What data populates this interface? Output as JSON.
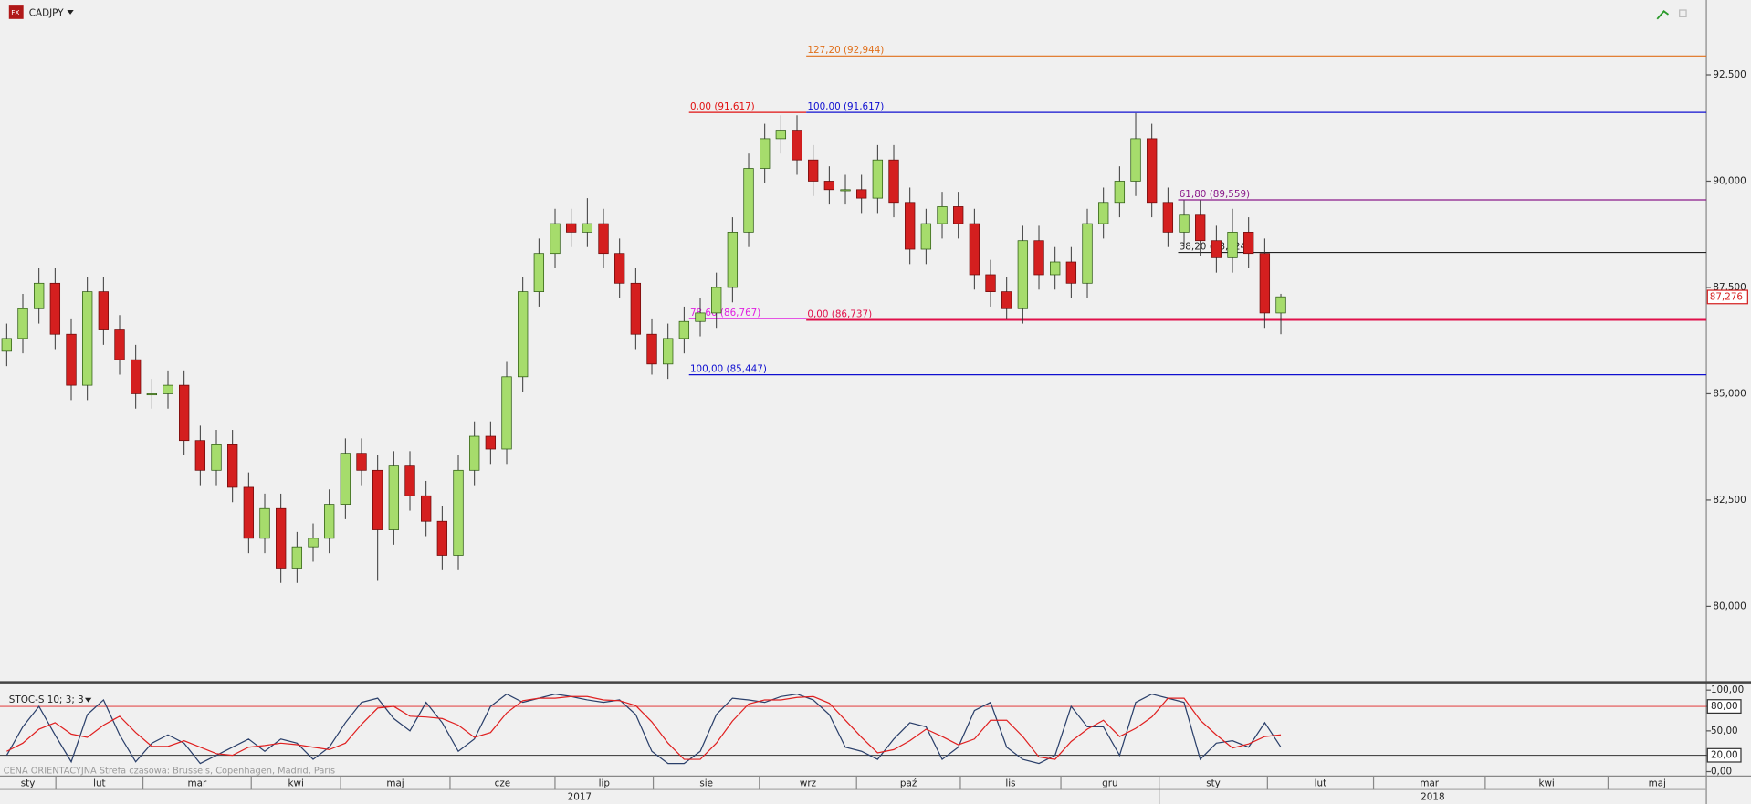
{
  "chart_data": {
    "type": "candlestick",
    "title": "CADJPY",
    "up_color": "#a6dc6c",
    "down_color": "#d41f1f",
    "open": [
      86.0,
      86.3,
      87.0,
      87.6,
      86.4,
      85.2,
      87.4,
      86.5,
      85.8,
      85.0,
      85.0,
      85.2,
      83.9,
      83.2,
      83.8,
      82.8,
      81.6,
      82.3,
      80.9,
      81.4,
      81.6,
      82.4,
      83.6,
      83.2,
      81.8,
      83.3,
      82.6,
      82.0,
      81.2,
      83.2,
      84.0,
      83.7,
      85.4,
      87.4,
      88.3,
      89.0,
      88.8,
      89.0,
      88.3,
      87.6,
      86.4,
      85.7,
      86.3,
      86.7,
      86.9,
      87.5,
      88.8,
      90.3,
      91.0,
      91.2,
      90.5,
      90.0,
      89.8,
      89.8,
      89.6,
      90.5,
      89.5,
      88.4,
      89.0,
      89.4,
      89.0,
      87.8,
      87.4,
      87.0,
      88.6,
      87.8,
      88.1,
      87.6,
      89.0,
      89.5,
      90.0,
      91.0,
      89.5,
      88.8,
      89.2,
      88.6,
      88.2,
      88.8,
      88.3,
      86.9
    ],
    "high": [
      86.65,
      87.35,
      87.95,
      87.95,
      86.75,
      87.75,
      87.75,
      86.85,
      86.15,
      85.35,
      85.55,
      85.55,
      84.25,
      84.15,
      84.15,
      83.15,
      82.65,
      82.65,
      81.75,
      81.95,
      82.75,
      83.95,
      83.95,
      83.55,
      83.65,
      83.65,
      82.95,
      82.35,
      83.55,
      84.35,
      84.35,
      85.75,
      87.75,
      88.65,
      89.35,
      89.35,
      89.6,
      89.35,
      88.65,
      87.95,
      86.75,
      86.65,
      87.05,
      87.25,
      87.85,
      89.15,
      90.65,
      91.35,
      91.55,
      91.55,
      90.85,
      90.35,
      90.15,
      90.15,
      90.85,
      90.85,
      89.85,
      89.35,
      89.75,
      89.75,
      89.35,
      88.15,
      87.75,
      88.95,
      88.95,
      88.45,
      88.45,
      89.35,
      89.85,
      90.35,
      91.6,
      91.35,
      89.85,
      89.55,
      89.55,
      88.95,
      89.35,
      89.15,
      88.65,
      87.35
    ],
    "low": [
      85.65,
      85.95,
      86.65,
      86.05,
      84.85,
      84.85,
      86.15,
      85.45,
      84.65,
      84.65,
      84.65,
      83.55,
      82.85,
      82.85,
      82.45,
      81.25,
      81.25,
      80.55,
      80.55,
      81.05,
      81.25,
      82.05,
      82.85,
      80.6,
      81.45,
      82.25,
      81.65,
      80.85,
      80.85,
      82.85,
      83.35,
      83.35,
      85.05,
      87.05,
      87.95,
      88.45,
      88.45,
      87.95,
      87.25,
      86.05,
      85.45,
      85.35,
      85.95,
      86.35,
      86.55,
      87.15,
      88.45,
      89.95,
      90.65,
      90.15,
      89.65,
      89.45,
      89.45,
      89.25,
      89.25,
      89.15,
      88.05,
      88.05,
      88.65,
      88.65,
      87.45,
      87.05,
      86.75,
      86.65,
      87.45,
      87.45,
      87.25,
      87.25,
      88.65,
      89.15,
      89.65,
      89.15,
      88.45,
      88.45,
      88.25,
      87.85,
      87.85,
      87.95,
      86.55,
      86.4
    ],
    "close": [
      86.3,
      87.0,
      87.6,
      86.4,
      85.2,
      87.4,
      86.5,
      85.8,
      85.0,
      85.0,
      85.2,
      83.9,
      83.2,
      83.8,
      82.8,
      81.6,
      82.3,
      80.9,
      81.4,
      81.6,
      82.4,
      83.6,
      83.2,
      81.8,
      83.3,
      82.6,
      82.0,
      81.2,
      83.2,
      84.0,
      83.7,
      85.4,
      87.4,
      88.3,
      89.0,
      88.8,
      89.0,
      88.3,
      87.6,
      86.4,
      85.7,
      86.3,
      86.7,
      86.9,
      87.5,
      88.8,
      90.3,
      91.0,
      91.2,
      90.5,
      90.0,
      89.8,
      89.8,
      89.6,
      90.5,
      89.5,
      88.4,
      89.0,
      89.4,
      89.0,
      87.8,
      87.4,
      87.0,
      88.6,
      87.8,
      88.1,
      87.6,
      89.0,
      89.5,
      90.0,
      91.0,
      89.5,
      88.8,
      89.2,
      88.6,
      88.2,
      88.8,
      88.3,
      86.9,
      87.28
    ],
    "ylim": [
      78.24,
      94.26
    ],
    "yticks": [
      {
        "value": 80,
        "label": "80,000"
      },
      {
        "value": 82.5,
        "label": "82,500"
      },
      {
        "value": 85,
        "label": "85,000"
      },
      {
        "value": 87.5,
        "label": "87,500"
      },
      {
        "value": 90,
        "label": "90,000"
      },
      {
        "value": 92.5,
        "label": "92,500"
      }
    ],
    "last_price": {
      "value": 87.276,
      "label": "87,276"
    },
    "fib_levels": [
      {
        "label": "127,20 (92,944)",
        "value": 92.944,
        "color": "#e0701c"
      },
      {
        "label": "0,00 (91,617)",
        "value": 91.617,
        "color": "#e01010"
      },
      {
        "label": "100,00 (91,617)",
        "value": 91.617,
        "color": "#1010d0"
      },
      {
        "label": "61,80 (89,559)",
        "value": 89.559,
        "color": "#8a1a8a"
      },
      {
        "label": "38,20 (88,324)",
        "value": 88.324,
        "color": "#222222"
      },
      {
        "label": "78,60 (86,767)",
        "value": 86.767,
        "color": "#e020e0"
      },
      {
        "label": "0,00 (86,737)",
        "value": 86.737,
        "color": "#e0104a"
      },
      {
        "label": "100,00 (85,447)",
        "value": 85.447,
        "color": "#1010d0"
      }
    ],
    "indicator": {
      "title": "STOC-S 10; 3; 3",
      "ylim": [
        0,
        100
      ],
      "yticks": [
        {
          "value": 100,
          "label": "100,00"
        },
        {
          "value": 80,
          "label": "80,00"
        },
        {
          "value": 50,
          "label": "50,00"
        },
        {
          "value": 20,
          "label": "20,00"
        },
        {
          "value": 0,
          "label": "0,00"
        }
      ],
      "levels": [
        80,
        20
      ],
      "series": [
        {
          "color": "#2a3f6a",
          "values": [
            20,
            55,
            80,
            45,
            12,
            70,
            88,
            45,
            12,
            35,
            45,
            35,
            10,
            20,
            30,
            40,
            25,
            40,
            35,
            15,
            30,
            60,
            85,
            90,
            65,
            50,
            85,
            60,
            25,
            40,
            80,
            95,
            85,
            90,
            95,
            92,
            88,
            85,
            88,
            70,
            25,
            10,
            10,
            25,
            70,
            90,
            88,
            85,
            92,
            95,
            88,
            70,
            30,
            25,
            15,
            40,
            60,
            55,
            15,
            30,
            75,
            85,
            30,
            15,
            10,
            20,
            80,
            55,
            55,
            20,
            85,
            95,
            90,
            85,
            15,
            35,
            38,
            30,
            60,
            30
          ]
        },
        {
          "color": "#e02020",
          "values": [
            25,
            35,
            52,
            60,
            46,
            42,
            57,
            68,
            48,
            31,
            31,
            38,
            30,
            22,
            20,
            30,
            32,
            35,
            33,
            30,
            27,
            35,
            58,
            78,
            80,
            68,
            67,
            65,
            57,
            42,
            48,
            72,
            87,
            90,
            90,
            92,
            92,
            88,
            87,
            81,
            61,
            35,
            15,
            15,
            35,
            62,
            83,
            88,
            88,
            91,
            92,
            84,
            63,
            42,
            23,
            27,
            38,
            52,
            43,
            33,
            40,
            63,
            63,
            43,
            18,
            15,
            37,
            52,
            63,
            43,
            53,
            67,
            90,
            90,
            63,
            45,
            29,
            34,
            43,
            45
          ]
        }
      ]
    },
    "months": [
      "sty",
      "lut",
      "mar",
      "kwi",
      "maj",
      "cze",
      "lip",
      "sie",
      "wrz",
      "paź",
      "lis",
      "gru",
      "sty",
      "lut",
      "mar",
      "kwi",
      "maj"
    ],
    "years": [
      "2017",
      "2018"
    ],
    "footer": "CENA ORIENTACYJNA   Strefa czasowa: Brussels, Copenhagen, Madrid, Paris"
  }
}
